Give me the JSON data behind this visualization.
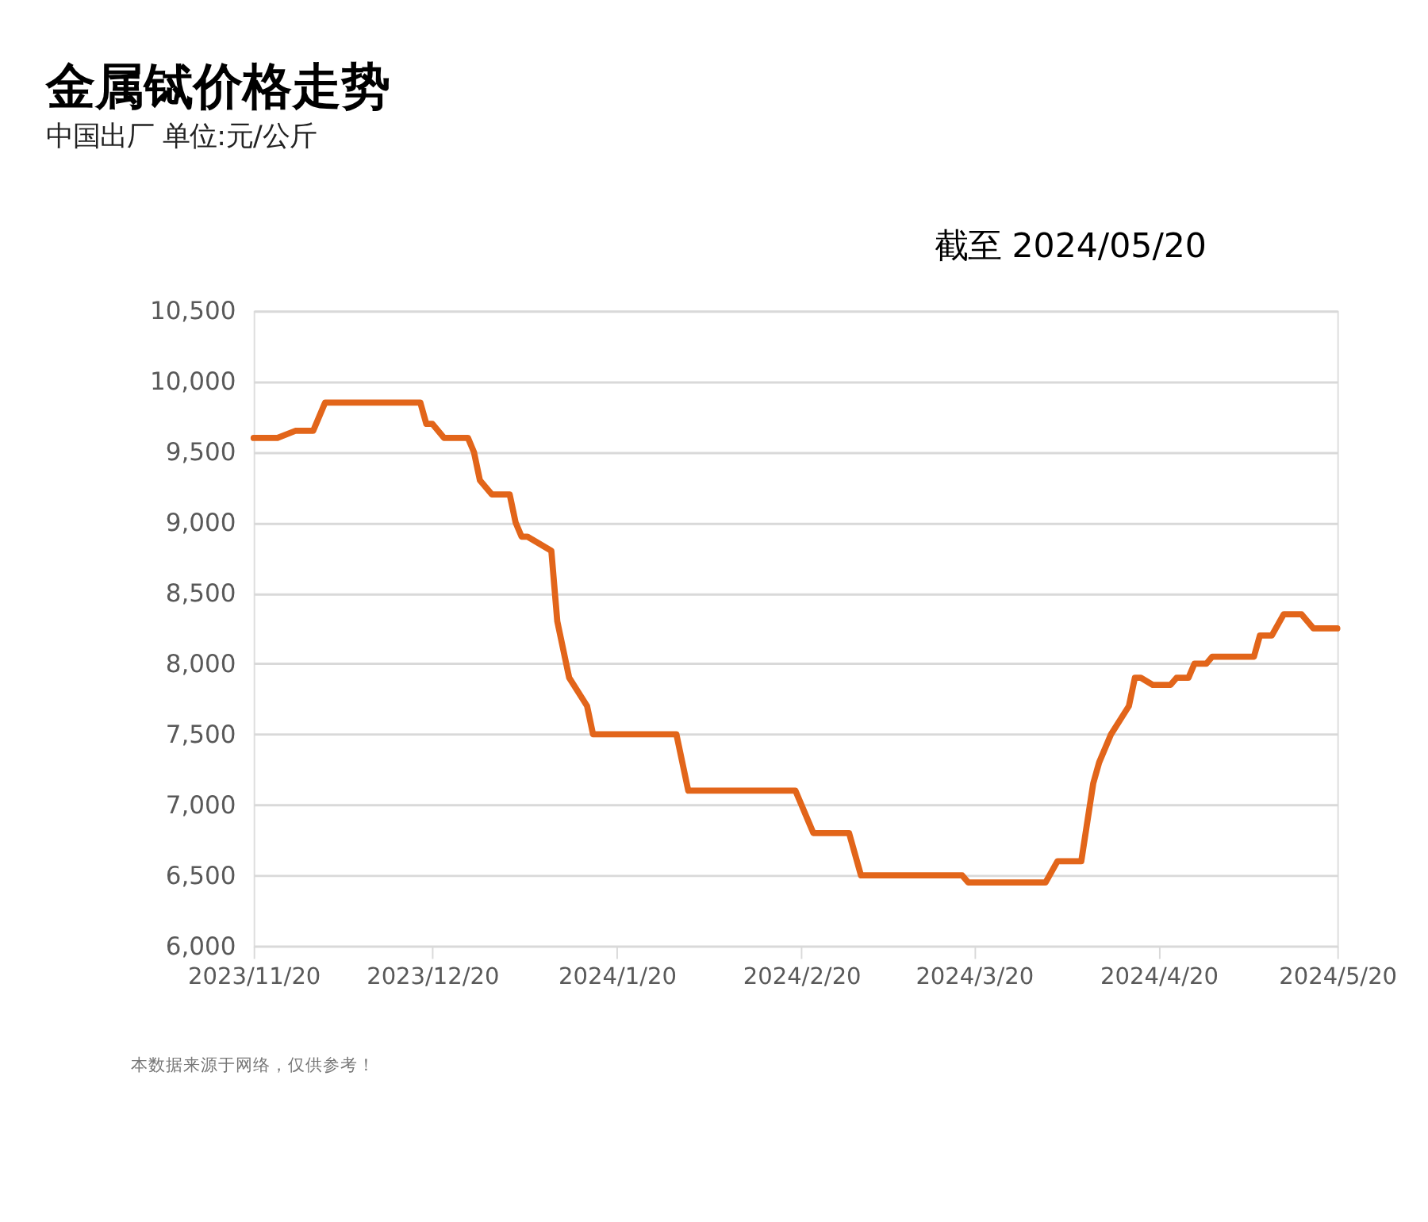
{
  "chart_data": {
    "type": "line",
    "title": "金属铽价格走势",
    "subtitle": "中国出厂  单位:元/公斤",
    "annotations": [
      "截至 2024/05/20",
      "本数据来源于网络，仅供参考！"
    ],
    "x": [
      "2023-11-20",
      "2023-11-24",
      "2023-11-27",
      "2023-11-30",
      "2023-12-02",
      "2023-12-18",
      "2023-12-19",
      "2023-12-20",
      "2023-12-22",
      "2023-12-26",
      "2023-12-27",
      "2023-12-28",
      "2023-12-30",
      "2024-01-02",
      "2024-01-03",
      "2024-01-04",
      "2024-01-05",
      "2024-01-09",
      "2024-01-10",
      "2024-01-12",
      "2024-01-15",
      "2024-01-16",
      "2024-01-30",
      "2024-02-01",
      "2024-02-19",
      "2024-02-22",
      "2024-02-28",
      "2024-03-01",
      "2024-03-18",
      "2024-03-19",
      "2024-04-01",
      "2024-04-03",
      "2024-04-07",
      "2024-04-09",
      "2024-04-10",
      "2024-04-12",
      "2024-04-15",
      "2024-04-16",
      "2024-04-17",
      "2024-04-19",
      "2024-04-22",
      "2024-04-23",
      "2024-04-25",
      "2024-04-26",
      "2024-04-28",
      "2024-04-29",
      "2024-05-06",
      "2024-05-07",
      "2024-05-09",
      "2024-05-11",
      "2024-05-14",
      "2024-05-16",
      "2024-05-20"
    ],
    "series": [
      {
        "color": "#e2651a",
        "values": [
          9600,
          9600,
          9650,
          9650,
          9850,
          9850,
          9700,
          9700,
          9600,
          9600,
          9500,
          9300,
          9200,
          9200,
          9000,
          8900,
          8900,
          8800,
          8300,
          7900,
          7700,
          7500,
          7500,
          7100,
          7100,
          6800,
          6800,
          6500,
          6500,
          6450,
          6450,
          6600,
          6600,
          7150,
          7300,
          7500,
          7700,
          7900,
          7900,
          7850,
          7850,
          7900,
          7900,
          8000,
          8000,
          8050,
          8050,
          8200,
          8200,
          8350,
          8350,
          8250,
          8250
        ]
      }
    ],
    "xlim": [
      "2023-11-20",
      "2024-05-20"
    ],
    "xticks": [
      {
        "value": "2023-11-20",
        "label": "2023/11/20"
      },
      {
        "value": "2023-12-20",
        "label": "2023/12/20"
      },
      {
        "value": "2024-01-20",
        "label": "2024/1/20"
      },
      {
        "value": "2024-02-20",
        "label": "2024/2/20"
      },
      {
        "value": "2024-03-20",
        "label": "2024/3/20"
      },
      {
        "value": "2024-04-20",
        "label": "2024/4/20"
      },
      {
        "value": "2024-05-20",
        "label": "2024/5/20"
      }
    ],
    "ylim": [
      6000,
      10500
    ],
    "yticks": [
      {
        "value": 6000,
        "label": "6,000"
      },
      {
        "value": 6500,
        "label": "6,500"
      },
      {
        "value": 7000,
        "label": "7,000"
      },
      {
        "value": 7500,
        "label": "7,500"
      },
      {
        "value": 8000,
        "label": "8,000"
      },
      {
        "value": 8500,
        "label": "8,500"
      },
      {
        "value": 9000,
        "label": "9,000"
      },
      {
        "value": 9500,
        "label": "9,500"
      },
      {
        "value": 10000,
        "label": "10,000"
      },
      {
        "value": 10500,
        "label": "10,500"
      }
    ],
    "grid": "y",
    "legend": false,
    "marker": "none",
    "line_style": "solid"
  }
}
